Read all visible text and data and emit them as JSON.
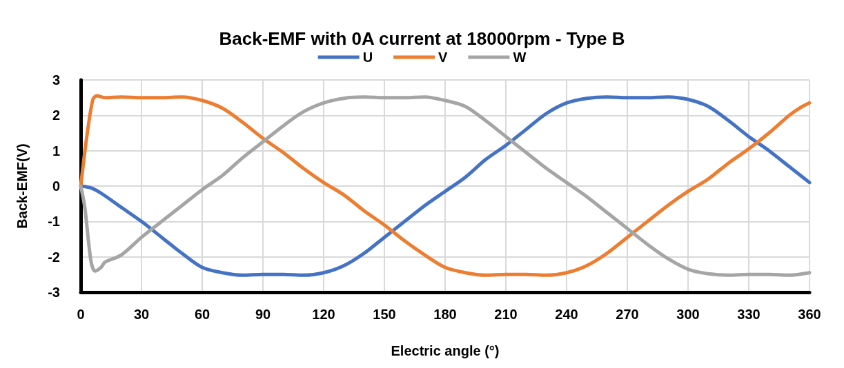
{
  "chart_data": {
    "type": "line",
    "title": "Back-EMF with 0A current at 18000rpm - Type B",
    "xlabel": "Electric angle (°)",
    "ylabel": "Back-EMF(V)",
    "xlim": [
      0,
      360
    ],
    "xticks": [
      0,
      30,
      60,
      90,
      120,
      150,
      180,
      210,
      240,
      270,
      300,
      330,
      360
    ],
    "ylim": [
      -3,
      3
    ],
    "yticks": [
      -3,
      -2,
      -1,
      0,
      1,
      2,
      3
    ],
    "grid": true,
    "legend": "top",
    "marker": "none",
    "line_style": "solid",
    "series": [
      {
        "name": "U",
        "color": "#4472c4",
        "x": [
          0,
          5,
          10,
          20,
          30,
          40,
          50,
          60,
          70,
          80,
          90,
          100,
          110,
          120,
          130,
          140,
          150,
          160,
          170,
          180,
          190,
          200,
          210,
          220,
          230,
          240,
          250,
          260,
          270,
          280,
          290,
          300,
          310,
          320,
          330,
          340,
          350,
          360
        ],
        "values": [
          0,
          -0.05,
          -0.2,
          -0.6,
          -1.0,
          -1.45,
          -1.9,
          -2.3,
          -2.45,
          -2.52,
          -2.5,
          -2.5,
          -2.52,
          -2.45,
          -2.25,
          -1.9,
          -1.45,
          -1.0,
          -0.55,
          -0.15,
          0.25,
          0.75,
          1.15,
          1.6,
          2.05,
          2.35,
          2.48,
          2.52,
          2.5,
          2.5,
          2.52,
          2.45,
          2.25,
          1.85,
          1.4,
          1.0,
          0.55,
          0.1
        ]
      },
      {
        "name": "V",
        "color": "#ed7d31",
        "x": [
          0,
          3,
          6,
          8,
          12,
          20,
          30,
          40,
          50,
          60,
          70,
          80,
          90,
          100,
          110,
          120,
          130,
          140,
          150,
          160,
          170,
          180,
          190,
          200,
          210,
          220,
          230,
          240,
          250,
          260,
          270,
          280,
          290,
          300,
          310,
          320,
          330,
          340,
          350,
          355,
          360
        ],
        "values": [
          0,
          1.4,
          2.45,
          2.55,
          2.5,
          2.52,
          2.5,
          2.5,
          2.52,
          2.42,
          2.2,
          1.8,
          1.35,
          0.95,
          0.5,
          0.1,
          -0.25,
          -0.7,
          -1.1,
          -1.55,
          -1.95,
          -2.3,
          -2.45,
          -2.52,
          -2.5,
          -2.5,
          -2.52,
          -2.45,
          -2.25,
          -1.9,
          -1.45,
          -1.0,
          -0.55,
          -0.15,
          0.2,
          0.65,
          1.05,
          1.5,
          2.0,
          2.2,
          2.35
        ]
      },
      {
        "name": "W",
        "color": "#a5a5a5",
        "x": [
          0,
          2,
          5,
          7,
          10,
          12,
          20,
          30,
          40,
          50,
          60,
          70,
          80,
          90,
          100,
          110,
          120,
          130,
          140,
          150,
          160,
          170,
          180,
          190,
          200,
          210,
          220,
          230,
          240,
          250,
          260,
          270,
          280,
          290,
          300,
          310,
          320,
          330,
          340,
          350,
          360
        ],
        "values": [
          0,
          -0.6,
          -2.1,
          -2.4,
          -2.3,
          -2.15,
          -1.95,
          -1.45,
          -1.0,
          -0.55,
          -0.1,
          0.3,
          0.8,
          1.25,
          1.7,
          2.1,
          2.35,
          2.48,
          2.52,
          2.5,
          2.5,
          2.52,
          2.42,
          2.25,
          1.85,
          1.4,
          0.95,
          0.5,
          0.1,
          -0.3,
          -0.75,
          -1.2,
          -1.65,
          -2.05,
          -2.35,
          -2.48,
          -2.52,
          -2.5,
          -2.5,
          -2.52,
          -2.45
        ]
      }
    ]
  }
}
